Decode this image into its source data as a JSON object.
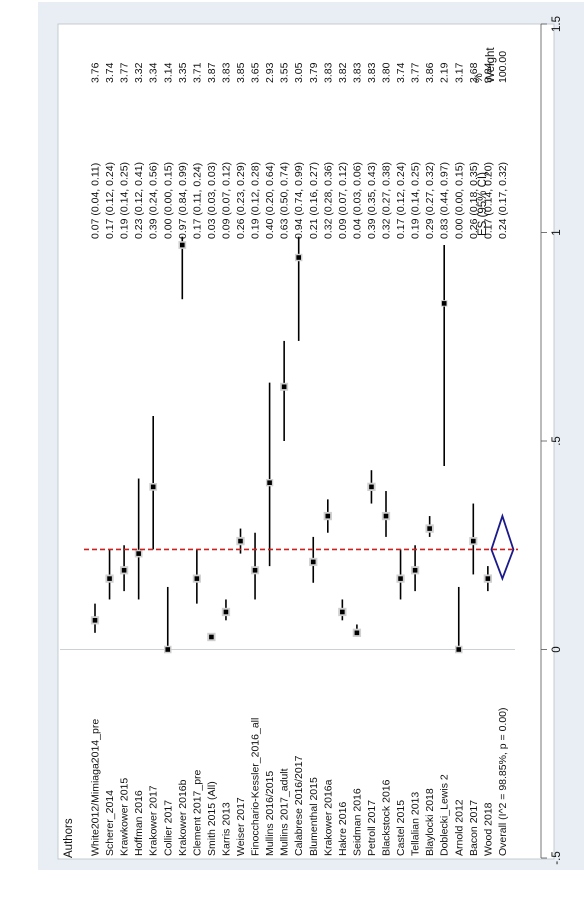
{
  "chart_data": {
    "type": "forest",
    "orientation": "rotated-90-ccw",
    "header": {
      "authors": "Authors",
      "es": "ES (95% CI)",
      "weight_top": "%",
      "weight": "Weight"
    },
    "studies": [
      {
        "author": "White2012/Mimiaga2014_pre",
        "es": 0.07,
        "lo": 0.04,
        "hi": 0.11,
        "ci_text": "0.07 (0.04, 0.11)",
        "weight": "3.76"
      },
      {
        "author": "Scherer_2014",
        "es": 0.17,
        "lo": 0.12,
        "hi": 0.24,
        "ci_text": "0.17 (0.12, 0.24)",
        "weight": "3.74"
      },
      {
        "author": "Krawkower 2015",
        "es": 0.19,
        "lo": 0.14,
        "hi": 0.25,
        "ci_text": "0.19 (0.14, 0.25)",
        "weight": "3.77"
      },
      {
        "author": "Hoffman 2016",
        "es": 0.23,
        "lo": 0.12,
        "hi": 0.41,
        "ci_text": "0.23 (0.12, 0.41)",
        "weight": "3.32"
      },
      {
        "author": "Krakower 2017",
        "es": 0.39,
        "lo": 0.24,
        "hi": 0.56,
        "ci_text": "0.39 (0.24, 0.56)",
        "weight": "3.34"
      },
      {
        "author": "Collier 2017",
        "es": 0.0,
        "lo": 0.0,
        "hi": 0.15,
        "ci_text": "0.00 (0.00, 0.15)",
        "weight": "3.14"
      },
      {
        "author": "Krakower 2016b",
        "es": 0.97,
        "lo": 0.84,
        "hi": 0.99,
        "ci_text": "0.97 (0.84, 0.99)",
        "weight": "3.35"
      },
      {
        "author": "Clement 2017_pre",
        "es": 0.17,
        "lo": 0.11,
        "hi": 0.24,
        "ci_text": "0.17 (0.11, 0.24)",
        "weight": "3.71"
      },
      {
        "author": "Smith 2015 (All)",
        "es": 0.03,
        "lo": 0.03,
        "hi": 0.03,
        "ci_text": "0.03 (0.03, 0.03)",
        "weight": "3.87"
      },
      {
        "author": "Karris 2013",
        "es": 0.09,
        "lo": 0.07,
        "hi": 0.12,
        "ci_text": "0.09 (0.07, 0.12)",
        "weight": "3.83"
      },
      {
        "author": "Weiser 2017",
        "es": 0.26,
        "lo": 0.23,
        "hi": 0.29,
        "ci_text": "0.26 (0.23, 0.29)",
        "weight": "3.85"
      },
      {
        "author": "Finocchario-Kessler_2016_all",
        "es": 0.19,
        "lo": 0.12,
        "hi": 0.28,
        "ci_text": "0.19 (0.12, 0.28)",
        "weight": "3.65"
      },
      {
        "author": "Mullins 2016/2015",
        "es": 0.4,
        "lo": 0.2,
        "hi": 0.64,
        "ci_text": "0.40 (0.20, 0.64)",
        "weight": "2.93"
      },
      {
        "author": "Mullins 2017_adult",
        "es": 0.63,
        "lo": 0.5,
        "hi": 0.74,
        "ci_text": "0.63 (0.50, 0.74)",
        "weight": "3.55"
      },
      {
        "author": "Calabrese 2016/2017",
        "es": 0.94,
        "lo": 0.74,
        "hi": 0.99,
        "ci_text": "0.94 (0.74, 0.99)",
        "weight": "3.05"
      },
      {
        "author": "Blumenthal 2015",
        "es": 0.21,
        "lo": 0.16,
        "hi": 0.27,
        "ci_text": "0.21 (0.16, 0.27)",
        "weight": "3.79"
      },
      {
        "author": "Krakower 2016a",
        "es": 0.32,
        "lo": 0.28,
        "hi": 0.36,
        "ci_text": "0.32 (0.28, 0.36)",
        "weight": "3.83"
      },
      {
        "author": "Hakre 2016",
        "es": 0.09,
        "lo": 0.07,
        "hi": 0.12,
        "ci_text": "0.09 (0.07, 0.12)",
        "weight": "3.82"
      },
      {
        "author": "Seidman 2016",
        "es": 0.04,
        "lo": 0.03,
        "hi": 0.06,
        "ci_text": "0.04 (0.03, 0.06)",
        "weight": "3.83"
      },
      {
        "author": "Petroll 2017",
        "es": 0.39,
        "lo": 0.35,
        "hi": 0.43,
        "ci_text": "0.39 (0.35, 0.43)",
        "weight": "3.83"
      },
      {
        "author": "Blackstock 2016",
        "es": 0.32,
        "lo": 0.27,
        "hi": 0.38,
        "ci_text": "0.32 (0.27, 0.38)",
        "weight": "3.80"
      },
      {
        "author": "Castel 2015",
        "es": 0.17,
        "lo": 0.12,
        "hi": 0.24,
        "ci_text": "0.17 (0.12, 0.24)",
        "weight": "3.74"
      },
      {
        "author": "Tellalian 2013",
        "es": 0.19,
        "lo": 0.14,
        "hi": 0.25,
        "ci_text": "0.19 (0.14, 0.25)",
        "weight": "3.77"
      },
      {
        "author": "Blaylocki 2018",
        "es": 0.29,
        "lo": 0.27,
        "hi": 0.32,
        "ci_text": "0.29 (0.27, 0.32)",
        "weight": "3.86"
      },
      {
        "author": "Doblecki_Lewis 2",
        "es": 0.83,
        "lo": 0.44,
        "hi": 0.97,
        "ci_text": "0.83 (0.44, 0.97)",
        "weight": "2.19"
      },
      {
        "author": "Arnold 2012",
        "es": 0.0,
        "lo": 0.0,
        "hi": 0.15,
        "ci_text": "0.00 (0.00, 0.15)",
        "weight": "3.17"
      },
      {
        "author": "Bacon 2017",
        "es": 0.26,
        "lo": 0.18,
        "hi": 0.35,
        "ci_text": "0.26 (0.18, 0.35)",
        "weight": "3.68"
      },
      {
        "author": "Wood 2018",
        "es": 0.17,
        "lo": 0.14,
        "hi": 0.2,
        "ci_text": "0.17 (0.14, 0.20)",
        "weight": "3.84"
      }
    ],
    "overall": {
      "label": "Overall  (I^2 = 98.85%, p = 0.00)",
      "es": 0.24,
      "lo": 0.17,
      "hi": 0.32,
      "ci_text": "0.24 (0.17, 0.32)",
      "weight": "100.00"
    },
    "axis": {
      "range": [
        -0.5,
        1.5
      ],
      "ticks": [
        -0.5,
        0,
        0.5,
        1,
        1.5
      ],
      "tick_labels": [
        "-.5",
        "0",
        ".5",
        "1",
        "1.5"
      ]
    },
    "reference_line": 0.24,
    "colors": {
      "point": "#000000",
      "ci_line": "#000000",
      "box": "#cfcfcf",
      "overall_diamond": "#1a1a8c",
      "ref_line": "#cc1f1f",
      "frame_bg": "#e8eef3"
    }
  }
}
